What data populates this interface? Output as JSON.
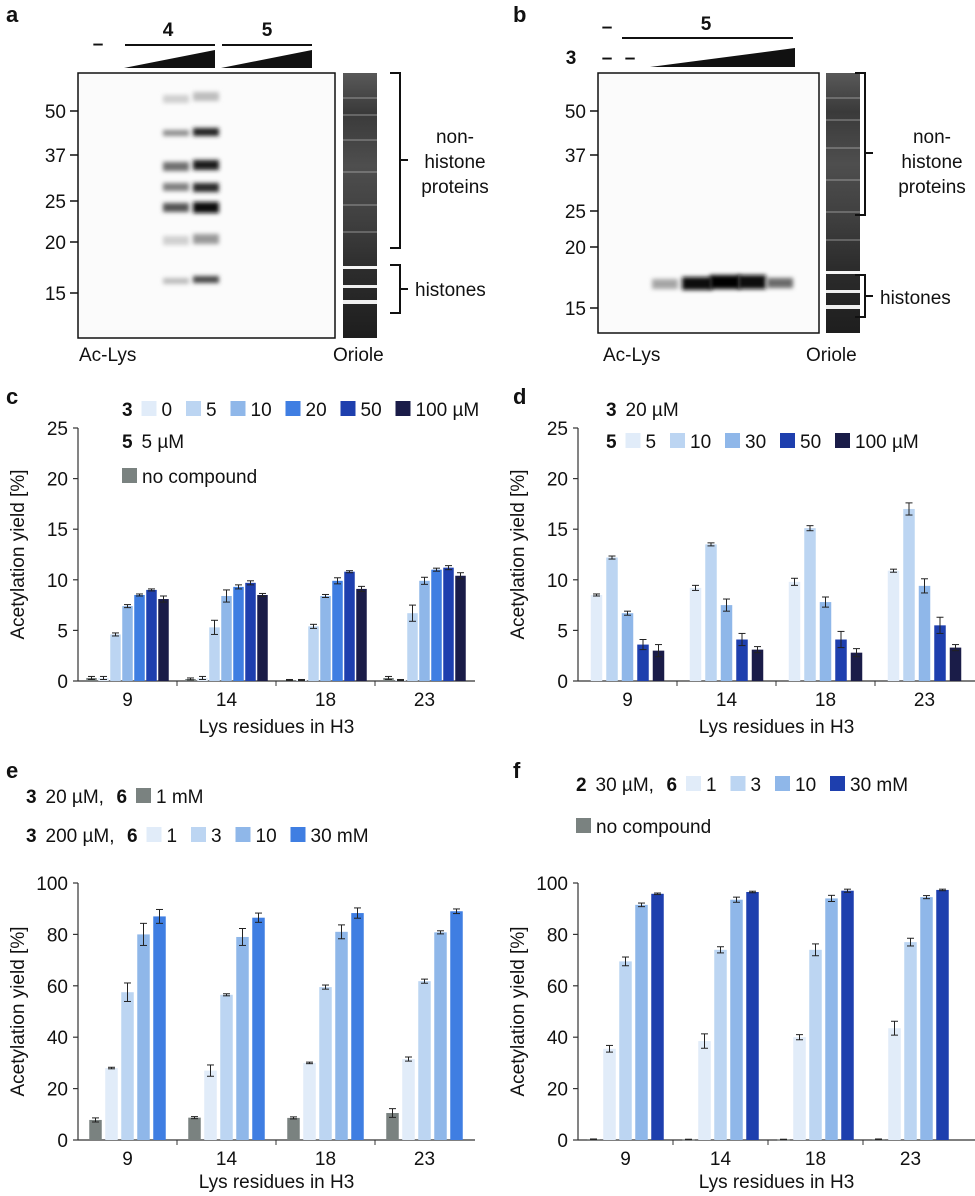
{
  "colors": {
    "c0": "#e1ecf9",
    "c5": "#bcd5f2",
    "c10": "#8fb7e9",
    "c20": "#3f7ee2",
    "c50": "#1e3fae",
    "c100": "#1a1c48",
    "grey": "#7a8280",
    "gel_bg": "#fbfbfb"
  },
  "blots": [
    {
      "id": "a",
      "letter": "a",
      "top_labels": [
        "–",
        "4",
        "5"
      ],
      "lane_labels": [],
      "markers": [
        "50",
        "37",
        "25",
        "20",
        "15"
      ],
      "bracket_labels": [
        "non-",
        "histone",
        "proteins",
        "histones"
      ],
      "bottom_left": "Ac-Lys",
      "bottom_right": "Oriole"
    },
    {
      "id": "b",
      "letter": "b",
      "top_labels": [
        "–",
        "5"
      ],
      "lane_labels": [
        "3",
        "–",
        "–"
      ],
      "markers": [
        "50",
        "37",
        "25",
        "20",
        "15"
      ],
      "bracket_labels": [
        "non-",
        "histone",
        "proteins",
        "histones"
      ],
      "bottom_left": "Ac-Lys",
      "bottom_right": "Oriole"
    }
  ],
  "chart_data": [
    {
      "id": "c",
      "letter": "c",
      "type": "bar",
      "xlabel": "Lys residues in H3",
      "ylabel": "Acetylation yield [%]",
      "ylim": [
        0,
        25
      ],
      "yticks": [
        "0",
        "5",
        "10",
        "15",
        "20",
        "25"
      ],
      "categories": [
        "9",
        "14",
        "18",
        "23"
      ],
      "legend_lines": [
        {
          "items": [
            {
              "text": "3",
              "bold": true
            },
            {
              "swatch": "c0",
              "text": "0"
            },
            {
              "swatch": "c5",
              "text": "5"
            },
            {
              "swatch": "c10",
              "text": "10"
            },
            {
              "swatch": "c20",
              "text": "20"
            },
            {
              "swatch": "c50",
              "text": "50"
            },
            {
              "swatch": "c100",
              "text": "100 µM"
            }
          ]
        },
        {
          "items": [
            {
              "text": "5",
              "bold": true
            },
            {
              "text": "5 µM"
            }
          ]
        },
        {
          "items": [
            {
              "swatch": "grey",
              "text": "no compound"
            }
          ]
        }
      ],
      "series": [
        {
          "color": "grey",
          "values": [
            0.3,
            0.2,
            0.1,
            0.3
          ],
          "errors": [
            0.15,
            0.1,
            0.05,
            0.15
          ]
        },
        {
          "color": "c0",
          "values": [
            0.3,
            0.3,
            0.1,
            0.1
          ],
          "errors": [
            0.15,
            0.15,
            0.05,
            0.05
          ]
        },
        {
          "color": "c5",
          "values": [
            4.6,
            5.3,
            5.4,
            6.7
          ],
          "errors": [
            0.15,
            0.7,
            0.2,
            0.8
          ]
        },
        {
          "color": "c10",
          "values": [
            7.4,
            8.4,
            8.4,
            9.9
          ],
          "errors": [
            0.15,
            0.6,
            0.15,
            0.35
          ]
        },
        {
          "color": "c20",
          "values": [
            8.5,
            9.3,
            9.9,
            11.0
          ],
          "errors": [
            0.1,
            0.2,
            0.3,
            0.15
          ]
        },
        {
          "color": "c50",
          "values": [
            9.0,
            9.7,
            10.8,
            11.2
          ],
          "errors": [
            0.1,
            0.2,
            0.1,
            0.2
          ]
        },
        {
          "color": "c100",
          "values": [
            8.1,
            8.5,
            9.1,
            10.4
          ],
          "errors": [
            0.3,
            0.15,
            0.25,
            0.3
          ]
        }
      ]
    },
    {
      "id": "d",
      "letter": "d",
      "type": "bar",
      "xlabel": "Lys residues in H3",
      "ylabel": "Acetylation yield [%]",
      "ylim": [
        0,
        25
      ],
      "yticks": [
        "0",
        "5",
        "10",
        "15",
        "20",
        "25"
      ],
      "categories": [
        "9",
        "14",
        "18",
        "23"
      ],
      "legend_lines": [
        {
          "items": [
            {
              "text": "3",
              "bold": true
            },
            {
              "text": "20 µM"
            }
          ]
        },
        {
          "items": [
            {
              "text": "5",
              "bold": true
            },
            {
              "swatch": "c0",
              "text": "5"
            },
            {
              "swatch": "c5",
              "text": "10"
            },
            {
              "swatch": "c10",
              "text": "30"
            },
            {
              "swatch": "c50",
              "text": "50"
            },
            {
              "swatch": "c100",
              "text": "100 µM"
            }
          ]
        }
      ],
      "series": [
        {
          "color": "c0",
          "values": [
            8.5,
            9.2,
            9.8,
            10.9
          ],
          "errors": [
            0.1,
            0.25,
            0.35,
            0.15
          ]
        },
        {
          "color": "c5",
          "values": [
            12.2,
            13.5,
            15.1,
            17.0
          ],
          "errors": [
            0.15,
            0.15,
            0.25,
            0.6
          ]
        },
        {
          "color": "c10",
          "values": [
            6.7,
            7.5,
            7.8,
            9.4
          ],
          "errors": [
            0.2,
            0.6,
            0.5,
            0.7
          ]
        },
        {
          "color": "c50",
          "values": [
            3.6,
            4.1,
            4.1,
            5.5
          ],
          "errors": [
            0.5,
            0.6,
            0.8,
            0.8
          ]
        },
        {
          "color": "c100",
          "values": [
            3.0,
            3.1,
            2.8,
            3.3
          ],
          "errors": [
            0.6,
            0.3,
            0.4,
            0.3
          ]
        }
      ]
    },
    {
      "id": "e",
      "letter": "e",
      "type": "bar",
      "xlabel": "Lys residues in H3",
      "ylabel": "Acetylation yield [%]",
      "ylim": [
        0,
        100
      ],
      "yticks": [
        "0",
        "20",
        "40",
        "60",
        "80",
        "100"
      ],
      "categories": [
        "9",
        "14",
        "18",
        "23"
      ],
      "legend_lines": [
        {
          "items": [
            {
              "text": "3",
              "bold": true
            },
            {
              "text": "20 µM,"
            },
            {
              "text": "6",
              "bold": true
            },
            {
              "swatch": "grey",
              "text": "1 mM"
            }
          ]
        },
        {
          "items": [
            {
              "text": "3",
              "bold": true
            },
            {
              "text": "200 µM,"
            },
            {
              "text": "6",
              "bold": true
            },
            {
              "swatch": "c0",
              "text": "1"
            },
            {
              "swatch": "c5",
              "text": "3"
            },
            {
              "swatch": "c10",
              "text": "10"
            },
            {
              "swatch": "c20",
              "text": "30 mM"
            }
          ]
        }
      ],
      "series": [
        {
          "color": "grey",
          "values": [
            7.8,
            8.7,
            8.6,
            10.5
          ],
          "errors": [
            0.8,
            0.4,
            0.4,
            1.7
          ]
        },
        {
          "color": "c0",
          "values": [
            28.0,
            27.0,
            30.0,
            31.5
          ],
          "errors": [
            0.3,
            2.2,
            0.3,
            0.8
          ]
        },
        {
          "color": "c5",
          "values": [
            57.5,
            56.5,
            59.5,
            61.8
          ],
          "errors": [
            3.6,
            0.4,
            0.8,
            0.8
          ]
        },
        {
          "color": "c10",
          "values": [
            80.0,
            79.0,
            81.0,
            80.8
          ],
          "errors": [
            4.3,
            3.3,
            2.7,
            0.6
          ]
        },
        {
          "color": "c20",
          "values": [
            87.0,
            86.5,
            88.3,
            89.0
          ],
          "errors": [
            2.7,
            1.8,
            2.0,
            0.9
          ]
        }
      ]
    },
    {
      "id": "f",
      "letter": "f",
      "type": "bar",
      "xlabel": "Lys residues in H3",
      "ylabel": "Acetylation yield [%]",
      "ylim": [
        0,
        100
      ],
      "yticks": [
        "0",
        "20",
        "40",
        "60",
        "80",
        "100"
      ],
      "categories": [
        "9",
        "14",
        "18",
        "23"
      ],
      "legend_lines": [
        {
          "items": [
            {
              "text": "2",
              "bold": true
            },
            {
              "text": "30 µM,"
            },
            {
              "text": "6",
              "bold": true
            },
            {
              "swatch": "c0",
              "text": "1"
            },
            {
              "swatch": "c5",
              "text": "3"
            },
            {
              "swatch": "c10",
              "text": "10"
            },
            {
              "swatch": "c50",
              "text": "30 mM"
            }
          ]
        },
        {
          "items": [
            {
              "swatch": "grey",
              "text": "no compound"
            }
          ]
        }
      ],
      "series": [
        {
          "color": "grey",
          "values": [
            0.3,
            0.2,
            0.2,
            0.3
          ],
          "errors": [
            0.1,
            0.1,
            0.1,
            0.1
          ]
        },
        {
          "color": "c0",
          "values": [
            35.5,
            38.5,
            40.0,
            43.5
          ],
          "errors": [
            1.3,
            2.8,
            1.0,
            2.7
          ]
        },
        {
          "color": "c5",
          "values": [
            69.5,
            74.0,
            74.0,
            77.0
          ],
          "errors": [
            1.7,
            1.2,
            2.3,
            1.5
          ]
        },
        {
          "color": "c10",
          "values": [
            91.5,
            93.5,
            94.0,
            94.5
          ],
          "errors": [
            0.7,
            1.0,
            1.2,
            0.6
          ]
        },
        {
          "color": "c50",
          "values": [
            95.8,
            96.5,
            97.0,
            97.3
          ],
          "errors": [
            0.3,
            0.3,
            0.6,
            0.3
          ]
        }
      ]
    }
  ]
}
